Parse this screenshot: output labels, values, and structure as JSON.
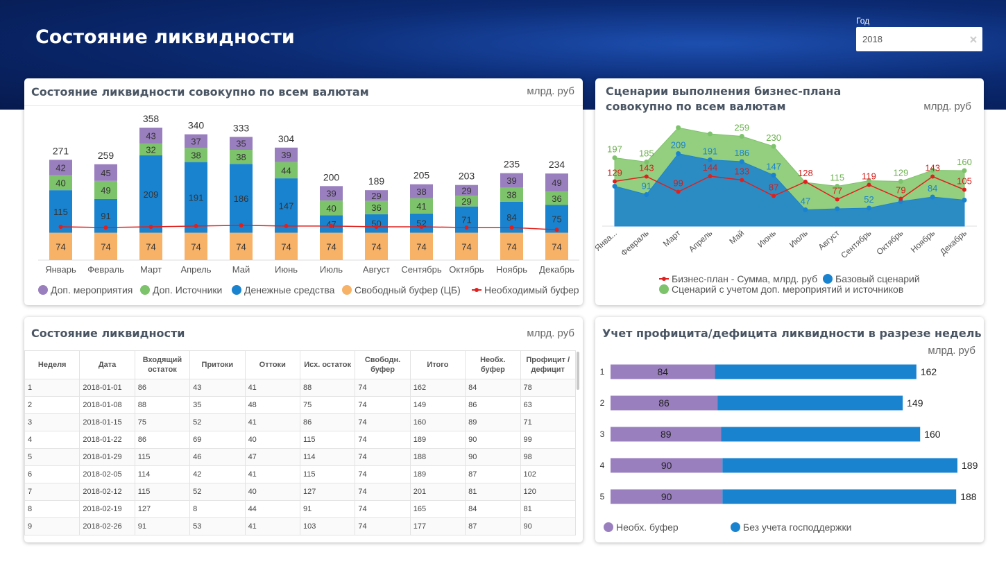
{
  "header": {
    "title": "Состояние ликвидности"
  },
  "filter": {
    "label": "Год",
    "value": "2018"
  },
  "chart_data": [
    {
      "type": "stacked-bar",
      "title": "Состояние ликвидности совокупно по всем валютам",
      "unit": "млрд. руб",
      "categories": [
        "Январь",
        "Февраль",
        "Март",
        "Апрель",
        "Май",
        "Июнь",
        "Июль",
        "Август",
        "Сентябрь",
        "Октябрь",
        "Ноябрь",
        "Декабрь"
      ],
      "series": [
        {
          "name": "Доп. мероприятия",
          "color": "#9a7fbf",
          "values": [
            42,
            45,
            43,
            37,
            35,
            39,
            39,
            29,
            38,
            29,
            39,
            49
          ]
        },
        {
          "name": "Доп. Источники",
          "color": "#7dc36b",
          "values": [
            40,
            49,
            32,
            38,
            38,
            44,
            40,
            36,
            41,
            29,
            38,
            36
          ]
        },
        {
          "name": "Денежные средства",
          "color": "#1a83cf",
          "values": [
            115,
            91,
            209,
            191,
            186,
            147,
            47,
            50,
            52,
            71,
            84,
            75
          ]
        },
        {
          "name": "Свободный буфер (ЦБ)",
          "color": "#f7b267",
          "values": [
            74,
            74,
            74,
            74,
            74,
            74,
            74,
            74,
            74,
            74,
            74,
            74
          ]
        },
        {
          "name": "Необходимый буфер",
          "color": "#e0201d",
          "type": "line",
          "values": [
            90,
            88,
            90,
            92,
            94,
            92,
            92,
            90,
            90,
            88,
            88,
            82
          ]
        }
      ],
      "totals": [
        271,
        259,
        358,
        340,
        333,
        304,
        200,
        189,
        205,
        203,
        235,
        234
      ]
    },
    {
      "type": "area",
      "title": "Сценарии выполнения бизнес-плана совокупно по всем валютам",
      "unit": "млрд. руб",
      "categories": [
        "Янва...",
        "Февраль",
        "Март",
        "Апрель",
        "Май",
        "Июнь",
        "Июль",
        "Август",
        "Сентябрь",
        "Октябрь",
        "Ноябрь",
        "Декабрь"
      ],
      "series": [
        {
          "name": "Бизнес-план - Сумма, млрд. руб",
          "color": "#e0201d",
          "type": "line",
          "values": [
            129,
            143,
            99,
            144,
            133,
            87,
            128,
            77,
            119,
            79,
            143,
            105
          ]
        },
        {
          "name": "Базовый сценарий",
          "color": "#1a83cf",
          "values": [
            115,
            91,
            209,
            191,
            186,
            147,
            47,
            50,
            52,
            71,
            84,
            75
          ],
          "value_labels": [
            null,
            "91",
            "209",
            "191",
            "186",
            "147",
            "47",
            null,
            "52",
            null,
            "84",
            null
          ]
        },
        {
          "name": "Сценарий с учетом доп. мероприятий и источников",
          "color": "#7dc36b",
          "values": [
            197,
            185,
            284,
            266,
            259,
            230,
            126,
            115,
            131,
            129,
            161,
            160
          ],
          "value_labels": [
            "197",
            "185",
            null,
            null,
            "259",
            "230",
            null,
            "115",
            null,
            "129",
            null,
            "160"
          ]
        }
      ]
    },
    {
      "type": "horizontal-stacked-bar",
      "title": "Учет профицита/дефицита ликвидности в разрезе недель",
      "unit": "млрд. руб",
      "categories": [
        "1",
        "2",
        "3",
        "4",
        "5"
      ],
      "series": [
        {
          "name": "Необх. буфер",
          "color": "#9a7fbf",
          "values": [
            84,
            86,
            89,
            90,
            90
          ]
        },
        {
          "name": "Без учета господдержки",
          "color": "#1a83cf",
          "values": [
            162,
            149,
            160,
            189,
            188
          ]
        }
      ]
    }
  ],
  "table": {
    "title": "Состояние ликвидности",
    "unit": "млрд. руб",
    "columns": [
      "Неделя",
      "Дата",
      "Входящий остаток",
      "Притоки",
      "Оттоки",
      "Исх. остаток",
      "Свободн. буфер",
      "Итого",
      "Необх. буфер",
      "Профицит /дефицит"
    ],
    "rows": [
      [
        1,
        "2018-01-01",
        86,
        43,
        41,
        88,
        74,
        162,
        84,
        78
      ],
      [
        2,
        "2018-01-08",
        88,
        35,
        48,
        75,
        74,
        149,
        86,
        63
      ],
      [
        3,
        "2018-01-15",
        75,
        52,
        41,
        86,
        74,
        160,
        89,
        71
      ],
      [
        4,
        "2018-01-22",
        86,
        69,
        40,
        115,
        74,
        189,
        90,
        99
      ],
      [
        5,
        "2018-01-29",
        115,
        46,
        47,
        114,
        74,
        188,
        90,
        98
      ],
      [
        6,
        "2018-02-05",
        114,
        42,
        41,
        115,
        74,
        189,
        87,
        102
      ],
      [
        7,
        "2018-02-12",
        115,
        52,
        40,
        127,
        74,
        201,
        81,
        120
      ],
      [
        8,
        "2018-02-19",
        127,
        8,
        44,
        91,
        74,
        165,
        84,
        81
      ],
      [
        9,
        "2018-02-26",
        91,
        53,
        41,
        103,
        74,
        177,
        87,
        90
      ]
    ]
  }
}
